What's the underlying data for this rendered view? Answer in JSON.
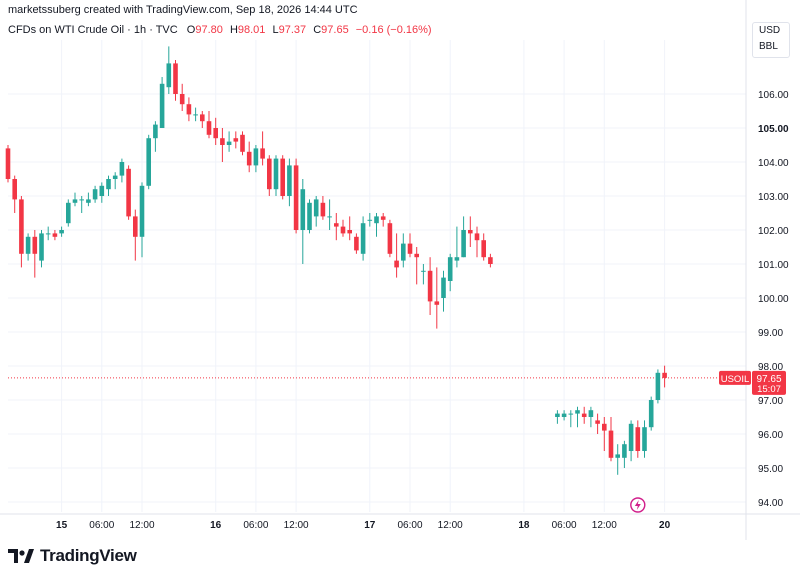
{
  "header": {
    "credit": "marketssuberg created with TradingView.com, Sep 18, 2026 14:44 UTC",
    "symbol": "CFDs on WTI Crude Oil · 1h · TVC",
    "open_label": "O",
    "open_value": "97.80",
    "high_label": "H",
    "high_value": "98.01",
    "low_label": "L",
    "low_value": "97.37",
    "close_label": "C",
    "close_value": "97.65",
    "change": "−0.16 (−0.16%)"
  },
  "unit_box": {
    "currency": "USD",
    "unit": "BBL"
  },
  "price_tag": {
    "symbol": "USOIL",
    "price": "97.65",
    "countdown": "15:07"
  },
  "footer": {
    "brand": "TradingView"
  },
  "colors": {
    "up": "#26a69a",
    "down": "#f23645",
    "grid": "#f0f3fa",
    "text": "#131722"
  },
  "chart_data": {
    "type": "candlestick",
    "title": "CFDs on WTI Crude Oil",
    "y_axis_labels": [
      "106.00",
      "105.00",
      "104.00",
      "103.00",
      "102.00",
      "101.00",
      "100.00",
      "99.00",
      "98.00",
      "97.00",
      "96.00",
      "95.00",
      "94.00"
    ],
    "y_bold": "105.00",
    "ylim": [
      93.5,
      108.0
    ],
    "x_tick_labels": [
      {
        "label": "15",
        "bold": true,
        "slot": 8
      },
      {
        "label": "06:00",
        "slot": 14
      },
      {
        "label": "12:00",
        "slot": 20
      },
      {
        "label": "16",
        "bold": true,
        "slot": 31
      },
      {
        "label": "06:00",
        "slot": 37
      },
      {
        "label": "12:00",
        "slot": 43
      },
      {
        "label": "17",
        "bold": true,
        "slot": 54
      },
      {
        "label": "06:00",
        "slot": 60
      },
      {
        "label": "12:00",
        "slot": 66
      },
      {
        "label": "18",
        "bold": true,
        "slot": 77
      },
      {
        "label": "06:00",
        "slot": 83
      },
      {
        "label": "12:00",
        "slot": 89
      },
      {
        "label": "20",
        "bold": true,
        "slot": 98
      }
    ],
    "current_price": 97.65,
    "candles": [
      {
        "slot": 0,
        "o": 104.4,
        "h": 104.5,
        "c": 103.5,
        "l": 103.4
      },
      {
        "slot": 1,
        "o": 103.5,
        "h": 103.6,
        "c": 102.9,
        "l": 102.5
      },
      {
        "slot": 2,
        "o": 102.9,
        "h": 103.0,
        "c": 101.3,
        "l": 100.9
      },
      {
        "slot": 3,
        "o": 101.3,
        "h": 101.9,
        "c": 101.8,
        "l": 101.1
      },
      {
        "slot": 4,
        "o": 101.8,
        "h": 102.0,
        "c": 101.3,
        "l": 100.6
      },
      {
        "slot": 5,
        "o": 101.1,
        "h": 102.0,
        "c": 101.9,
        "l": 100.9
      },
      {
        "slot": 6,
        "o": 101.9,
        "h": 102.1,
        "c": 101.9,
        "l": 101.7
      },
      {
        "slot": 7,
        "o": 101.9,
        "h": 102.0,
        "c": 101.8,
        "l": 101.7
      },
      {
        "slot": 8,
        "o": 101.9,
        "h": 102.1,
        "c": 102.0,
        "l": 101.8
      },
      {
        "slot": 9,
        "o": 102.2,
        "h": 102.9,
        "c": 102.8,
        "l": 102.1
      },
      {
        "slot": 10,
        "o": 102.8,
        "h": 103.1,
        "c": 102.9,
        "l": 102.7
      },
      {
        "slot": 11,
        "o": 102.9,
        "h": 103.0,
        "c": 102.9,
        "l": 102.5
      },
      {
        "slot": 12,
        "o": 102.8,
        "h": 103.1,
        "c": 102.9,
        "l": 102.7
      },
      {
        "slot": 13,
        "o": 102.9,
        "h": 103.3,
        "c": 103.2,
        "l": 102.8
      },
      {
        "slot": 14,
        "o": 103.0,
        "h": 103.4,
        "c": 103.3,
        "l": 102.8
      },
      {
        "slot": 15,
        "o": 103.2,
        "h": 103.6,
        "c": 103.5,
        "l": 103.0
      },
      {
        "slot": 16,
        "o": 103.5,
        "h": 103.7,
        "c": 103.6,
        "l": 103.2
      },
      {
        "slot": 17,
        "o": 103.6,
        "h": 104.1,
        "c": 104.0,
        "l": 103.4
      },
      {
        "slot": 18,
        "o": 103.8,
        "h": 103.9,
        "c": 102.4,
        "l": 102.3
      },
      {
        "slot": 19,
        "o": 102.4,
        "h": 102.6,
        "c": 101.8,
        "l": 101.1
      },
      {
        "slot": 20,
        "o": 101.8,
        "h": 103.4,
        "c": 103.3,
        "l": 101.2
      },
      {
        "slot": 21,
        "o": 103.3,
        "h": 104.8,
        "c": 104.7,
        "l": 103.2
      },
      {
        "slot": 22,
        "o": 104.7,
        "h": 105.2,
        "c": 105.1,
        "l": 104.3
      },
      {
        "slot": 23,
        "o": 105.0,
        "h": 106.5,
        "c": 106.3,
        "l": 105.0
      },
      {
        "slot": 24,
        "o": 106.2,
        "h": 107.4,
        "c": 106.9,
        "l": 106.0
      },
      {
        "slot": 25,
        "o": 106.9,
        "h": 107.0,
        "c": 106.0,
        "l": 105.8
      },
      {
        "slot": 26,
        "o": 106.0,
        "h": 106.3,
        "c": 105.7,
        "l": 105.5
      },
      {
        "slot": 27,
        "o": 105.7,
        "h": 105.9,
        "c": 105.4,
        "l": 105.2
      },
      {
        "slot": 28,
        "o": 105.4,
        "h": 105.6,
        "c": 105.4,
        "l": 105.2
      },
      {
        "slot": 29,
        "o": 105.4,
        "h": 105.5,
        "c": 105.2,
        "l": 105.0
      },
      {
        "slot": 30,
        "o": 105.2,
        "h": 105.5,
        "c": 104.8,
        "l": 104.7
      },
      {
        "slot": 31,
        "o": 105.0,
        "h": 105.3,
        "c": 104.7,
        "l": 104.5
      },
      {
        "slot": 32,
        "o": 104.7,
        "h": 105.0,
        "c": 104.5,
        "l": 104.0
      },
      {
        "slot": 33,
        "o": 104.5,
        "h": 104.9,
        "c": 104.6,
        "l": 104.3
      },
      {
        "slot": 34,
        "o": 104.7,
        "h": 104.9,
        "c": 104.6,
        "l": 104.4
      },
      {
        "slot": 35,
        "o": 104.8,
        "h": 104.9,
        "c": 104.3,
        "l": 104.2
      },
      {
        "slot": 36,
        "o": 104.3,
        "h": 104.6,
        "c": 103.9,
        "l": 103.7
      },
      {
        "slot": 37,
        "o": 103.9,
        "h": 104.5,
        "c": 104.4,
        "l": 103.7
      },
      {
        "slot": 38,
        "o": 104.4,
        "h": 104.9,
        "c": 104.1,
        "l": 103.9
      },
      {
        "slot": 39,
        "o": 104.1,
        "h": 104.2,
        "c": 103.2,
        "l": 103.0
      },
      {
        "slot": 40,
        "o": 103.2,
        "h": 104.2,
        "c": 104.1,
        "l": 103.0
      },
      {
        "slot": 41,
        "o": 104.1,
        "h": 104.2,
        "c": 103.0,
        "l": 102.9
      },
      {
        "slot": 42,
        "o": 103.0,
        "h": 104.1,
        "c": 103.9,
        "l": 102.7
      },
      {
        "slot": 43,
        "o": 103.9,
        "h": 104.1,
        "c": 102.0,
        "l": 101.9
      },
      {
        "slot": 44,
        "o": 102.0,
        "h": 103.5,
        "c": 103.2,
        "l": 101.0
      },
      {
        "slot": 45,
        "o": 102.0,
        "h": 102.9,
        "c": 102.8,
        "l": 101.9
      },
      {
        "slot": 46,
        "o": 102.4,
        "h": 103.0,
        "c": 102.9,
        "l": 102.1
      },
      {
        "slot": 47,
        "o": 102.8,
        "h": 103.0,
        "c": 102.4,
        "l": 102.3
      },
      {
        "slot": 48,
        "o": 102.4,
        "h": 102.9,
        "c": 102.4,
        "l": 102.0
      },
      {
        "slot": 49,
        "o": 102.2,
        "h": 102.5,
        "c": 102.1,
        "l": 101.7
      },
      {
        "slot": 50,
        "o": 102.1,
        "h": 102.3,
        "c": 101.9,
        "l": 101.8
      },
      {
        "slot": 51,
        "o": 102.0,
        "h": 102.4,
        "c": 101.9,
        "l": 101.7
      },
      {
        "slot": 52,
        "o": 101.8,
        "h": 101.9,
        "c": 101.4,
        "l": 101.3
      },
      {
        "slot": 53,
        "o": 101.3,
        "h": 102.4,
        "c": 102.2,
        "l": 101.1
      },
      {
        "slot": 54,
        "o": 102.3,
        "h": 102.5,
        "c": 102.3,
        "l": 102.1
      },
      {
        "slot": 55,
        "o": 102.2,
        "h": 102.5,
        "c": 102.4,
        "l": 101.8
      },
      {
        "slot": 56,
        "o": 102.4,
        "h": 102.5,
        "c": 102.3,
        "l": 102.1
      },
      {
        "slot": 57,
        "o": 102.2,
        "h": 102.3,
        "c": 101.3,
        "l": 101.2
      },
      {
        "slot": 58,
        "o": 101.1,
        "h": 101.9,
        "c": 100.9,
        "l": 100.6
      },
      {
        "slot": 59,
        "o": 101.1,
        "h": 101.9,
        "c": 101.6,
        "l": 100.9
      },
      {
        "slot": 60,
        "o": 101.6,
        "h": 101.9,
        "c": 101.3,
        "l": 101.2
      },
      {
        "slot": 61,
        "o": 101.3,
        "h": 101.5,
        "c": 101.2,
        "l": 100.4
      },
      {
        "slot": 62,
        "o": 100.8,
        "h": 101.0,
        "c": 100.8,
        "l": 100.4
      },
      {
        "slot": 63,
        "o": 100.8,
        "h": 101.2,
        "c": 99.9,
        "l": 99.5
      },
      {
        "slot": 64,
        "o": 99.9,
        "h": 100.9,
        "c": 99.8,
        "l": 99.1
      },
      {
        "slot": 65,
        "o": 100.0,
        "h": 100.8,
        "c": 100.6,
        "l": 99.6
      },
      {
        "slot": 66,
        "o": 100.5,
        "h": 101.3,
        "c": 101.2,
        "l": 100.2
      },
      {
        "slot": 67,
        "o": 101.1,
        "h": 102.1,
        "c": 101.2,
        "l": 100.9
      },
      {
        "slot": 68,
        "o": 101.2,
        "h": 102.4,
        "c": 102.0,
        "l": 101.2
      },
      {
        "slot": 69,
        "o": 102.0,
        "h": 102.4,
        "c": 101.9,
        "l": 101.5
      },
      {
        "slot": 70,
        "o": 101.9,
        "h": 102.1,
        "c": 101.7,
        "l": 101.2
      },
      {
        "slot": 71,
        "o": 101.7,
        "h": 101.9,
        "c": 101.2,
        "l": 101.1
      },
      {
        "slot": 72,
        "o": 101.2,
        "h": 101.3,
        "c": 101.0,
        "l": 100.9
      },
      {
        "slot": 82,
        "o": 96.5,
        "h": 96.7,
        "c": 96.6,
        "l": 96.3
      },
      {
        "slot": 83,
        "o": 96.5,
        "h": 96.7,
        "c": 96.6,
        "l": 96.4
      },
      {
        "slot": 84,
        "o": 96.6,
        "h": 96.7,
        "c": 96.6,
        "l": 96.2
      },
      {
        "slot": 85,
        "o": 96.6,
        "h": 96.8,
        "c": 96.7,
        "l": 96.2
      },
      {
        "slot": 86,
        "o": 96.6,
        "h": 96.8,
        "c": 96.5,
        "l": 96.3
      },
      {
        "slot": 87,
        "o": 96.5,
        "h": 96.8,
        "c": 96.7,
        "l": 96.2
      },
      {
        "slot": 88,
        "o": 96.4,
        "h": 96.6,
        "c": 96.3,
        "l": 96.0
      },
      {
        "slot": 89,
        "o": 96.3,
        "h": 96.5,
        "c": 96.1,
        "l": 95.5
      },
      {
        "slot": 90,
        "o": 96.1,
        "h": 96.5,
        "c": 95.3,
        "l": 95.2
      },
      {
        "slot": 91,
        "o": 95.3,
        "h": 95.7,
        "c": 95.4,
        "l": 94.8
      },
      {
        "slot": 92,
        "o": 95.3,
        "h": 95.8,
        "c": 95.7,
        "l": 95.0
      },
      {
        "slot": 93,
        "o": 95.5,
        "h": 96.4,
        "c": 96.3,
        "l": 95.2
      },
      {
        "slot": 94,
        "o": 96.2,
        "h": 96.4,
        "c": 95.5,
        "l": 95.3
      },
      {
        "slot": 95,
        "o": 95.5,
        "h": 96.4,
        "c": 96.2,
        "l": 95.3
      },
      {
        "slot": 96,
        "o": 96.2,
        "h": 97.1,
        "c": 97.0,
        "l": 96.1
      },
      {
        "slot": 97,
        "o": 97.0,
        "h": 97.9,
        "c": 97.8,
        "l": 96.9
      },
      {
        "slot": 98,
        "o": 97.8,
        "h": 98.01,
        "c": 97.65,
        "l": 97.37
      }
    ]
  }
}
